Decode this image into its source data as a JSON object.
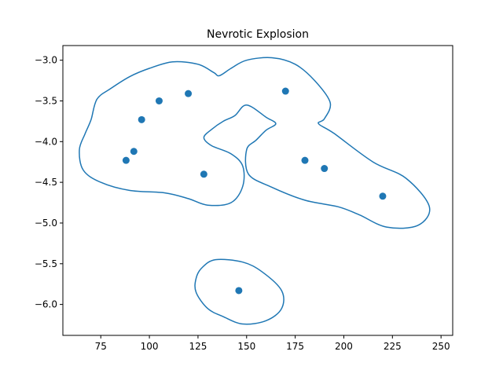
{
  "chart_data": {
    "type": "scatter",
    "title": "Nevrotic Explosion",
    "xlabel": "",
    "ylabel": "",
    "xlim": [
      55.5,
      256
    ],
    "ylim": [
      -6.38,
      -2.82
    ],
    "xticks": [
      75,
      100,
      125,
      150,
      175,
      200,
      225,
      250
    ],
    "yticks": [
      -3.0,
      -3.5,
      -4.0,
      -4.5,
      -5.0,
      -5.5,
      -6.0
    ],
    "xtick_labels": [
      "75",
      "100",
      "125",
      "150",
      "175",
      "200",
      "225",
      "250"
    ],
    "ytick_labels": [
      "−3.0",
      "−3.5",
      "−4.0",
      "−4.5",
      "−5.0",
      "−5.5",
      "−6.0"
    ],
    "grid": false,
    "series_color": "#1f77b4",
    "points": [
      {
        "x": 88,
        "y": -4.23
      },
      {
        "x": 92,
        "y": -4.12
      },
      {
        "x": 96,
        "y": -3.73
      },
      {
        "x": 105,
        "y": -3.5
      },
      {
        "x": 120,
        "y": -3.41
      },
      {
        "x": 128,
        "y": -4.4
      },
      {
        "x": 170,
        "y": -3.38
      },
      {
        "x": 180,
        "y": -4.23
      },
      {
        "x": 190,
        "y": -4.33
      },
      {
        "x": 220,
        "y": -4.67
      },
      {
        "x": 146,
        "y": -5.83
      }
    ],
    "contours": [
      {
        "points": [
          [
            70,
            -3.73
          ],
          [
            73,
            -3.48
          ],
          [
            80,
            -3.35
          ],
          [
            90,
            -3.2
          ],
          [
            100,
            -3.1
          ],
          [
            112,
            -3.02
          ],
          [
            125,
            -3.05
          ],
          [
            133,
            -3.15
          ],
          [
            136,
            -3.19
          ],
          [
            142,
            -3.1
          ],
          [
            150,
            -3.0
          ],
          [
            163,
            -2.97
          ],
          [
            175,
            -3.05
          ],
          [
            185,
            -3.25
          ],
          [
            193,
            -3.52
          ],
          [
            190,
            -3.72
          ],
          [
            187,
            -3.78
          ],
          [
            195,
            -3.9
          ],
          [
            215,
            -4.25
          ],
          [
            232,
            -4.45
          ],
          [
            244,
            -4.8
          ],
          [
            238,
            -5.03
          ],
          [
            222,
            -5.05
          ],
          [
            208,
            -4.9
          ],
          [
            197,
            -4.8
          ],
          [
            180,
            -4.72
          ],
          [
            163,
            -4.56
          ],
          [
            151,
            -4.4
          ],
          [
            150,
            -4.1
          ],
          [
            155,
            -3.98
          ],
          [
            160,
            -3.86
          ],
          [
            165,
            -3.78
          ],
          [
            160,
            -3.7
          ],
          [
            150,
            -3.55
          ],
          [
            144,
            -3.68
          ],
          [
            138,
            -3.75
          ],
          [
            132,
            -3.85
          ],
          [
            128,
            -3.95
          ],
          [
            132,
            -4.05
          ],
          [
            142,
            -4.15
          ],
          [
            148,
            -4.3
          ],
          [
            148,
            -4.55
          ],
          [
            142,
            -4.75
          ],
          [
            130,
            -4.78
          ],
          [
            120,
            -4.7
          ],
          [
            108,
            -4.63
          ],
          [
            90,
            -4.6
          ],
          [
            75,
            -4.5
          ],
          [
            66,
            -4.35
          ],
          [
            64,
            -4.1
          ],
          [
            67,
            -3.9
          ]
        ]
      },
      {
        "points": [
          [
            134,
            -5.45
          ],
          [
            148,
            -5.48
          ],
          [
            158,
            -5.6
          ],
          [
            168,
            -5.83
          ],
          [
            168,
            -6.05
          ],
          [
            160,
            -6.2
          ],
          [
            148,
            -6.24
          ],
          [
            138,
            -6.15
          ],
          [
            130,
            -6.05
          ],
          [
            124,
            -5.85
          ],
          [
            124,
            -5.68
          ],
          [
            127,
            -5.55
          ]
        ]
      }
    ]
  }
}
